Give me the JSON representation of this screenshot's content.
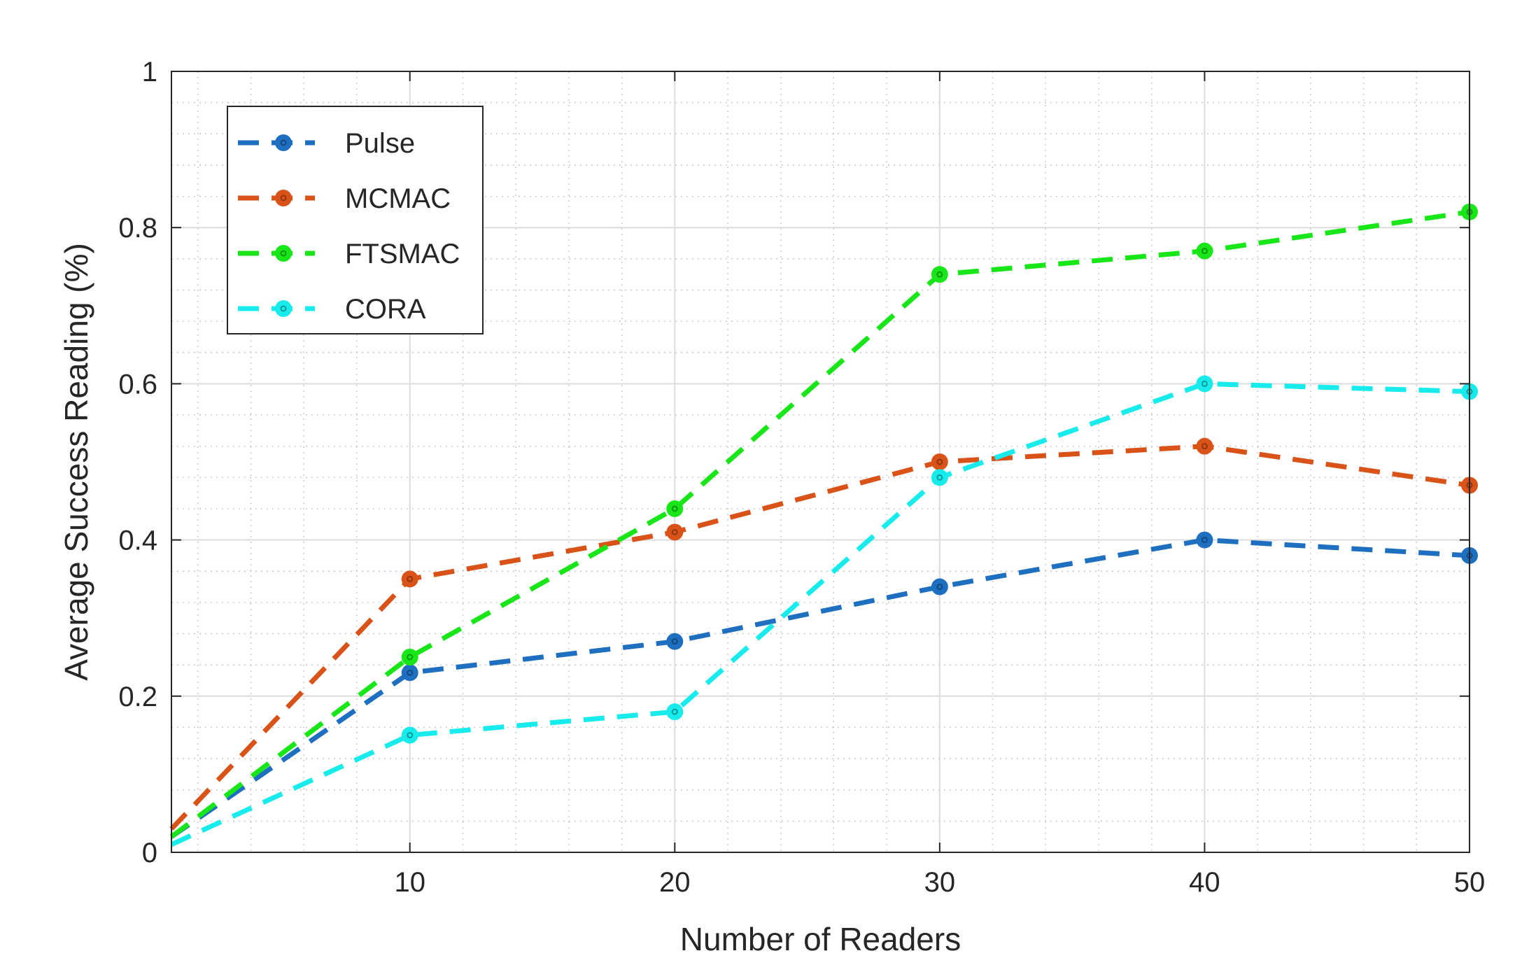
{
  "chart_data": {
    "type": "line",
    "title": "",
    "xlabel": "Number of Readers",
    "ylabel": "Average Success Reading (%)",
    "xlim": [
      1,
      50
    ],
    "ylim": [
      0,
      1
    ],
    "xticks": [
      10,
      20,
      30,
      40,
      50
    ],
    "yticks": [
      0,
      0.2,
      0.4,
      0.6,
      0.8,
      1
    ],
    "xtick_labels": [
      "10",
      "20",
      "30",
      "40",
      "50"
    ],
    "ytick_labels": [
      "0",
      "0.2",
      "0.4",
      "0.6",
      "0.8",
      "1"
    ],
    "grid": true,
    "minor_grid": true,
    "legend_position": "top-left",
    "x": [
      1,
      10,
      20,
      30,
      40,
      50
    ],
    "series": [
      {
        "name": "Pulse",
        "color": "#1f6fc0",
        "values": [
          0.02,
          0.23,
          0.27,
          0.34,
          0.4,
          0.38
        ]
      },
      {
        "name": "MCMAC",
        "color": "#d95319",
        "values": [
          0.03,
          0.35,
          0.41,
          0.5,
          0.52,
          0.47
        ]
      },
      {
        "name": "FTSMAC",
        "color": "#19e619",
        "values": [
          0.02,
          0.25,
          0.44,
          0.74,
          0.77,
          0.82
        ]
      },
      {
        "name": "CORA",
        "color": "#17ebeb",
        "values": [
          0.01,
          0.15,
          0.18,
          0.48,
          0.6,
          0.59
        ]
      }
    ]
  }
}
